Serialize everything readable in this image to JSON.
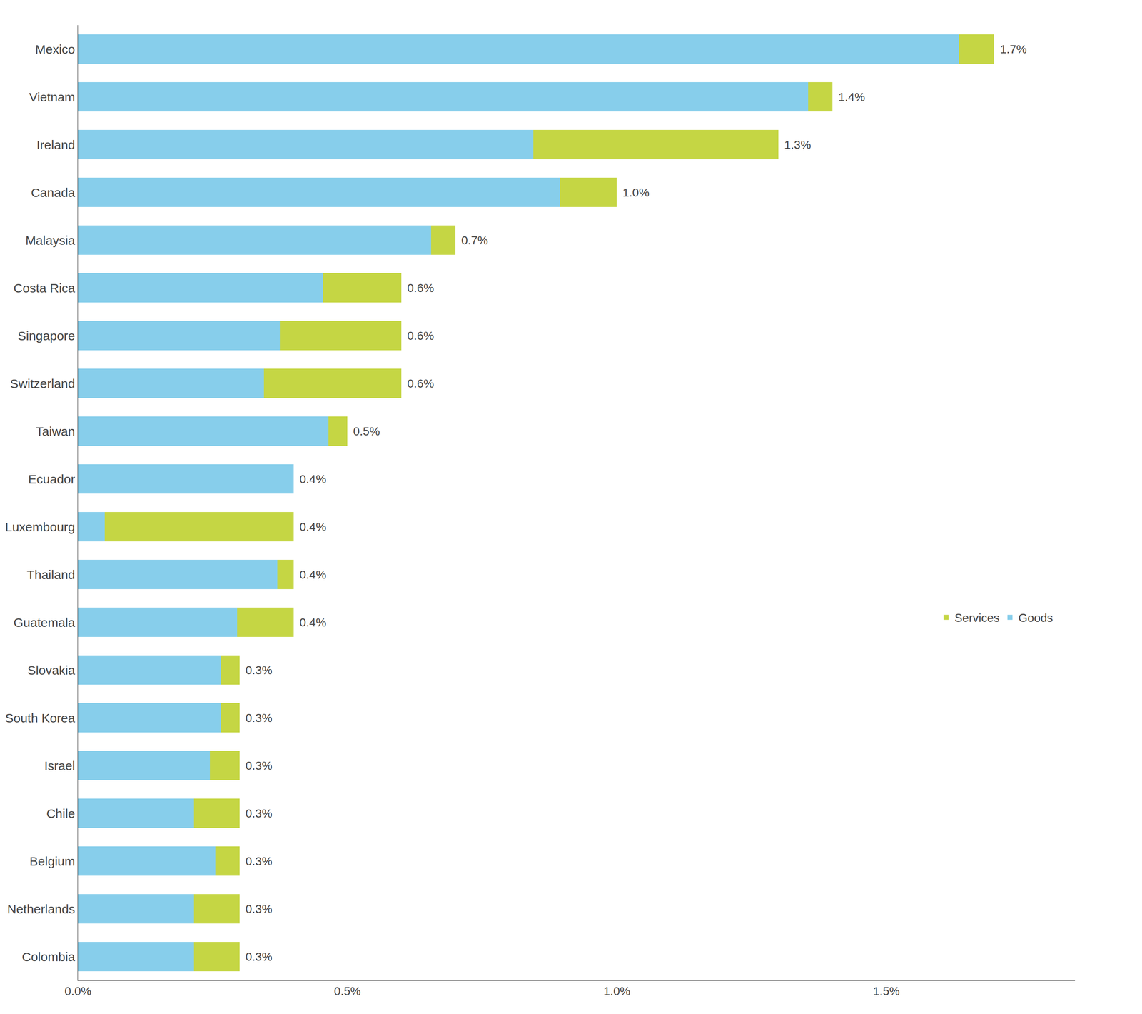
{
  "chart_data": {
    "type": "bar",
    "orientation": "horizontal",
    "stacked": true,
    "categories": [
      "Colombia",
      "Netherlands",
      "Belgium",
      "Chile",
      "Israel",
      "South Korea",
      "Slovakia",
      "Guatemala",
      "Thailand",
      "Luxembourg",
      "Ecuador",
      "Taiwan",
      "Switzerland",
      "Singapore",
      "Costa Rica",
      "Malaysia",
      "Canada",
      "Ireland",
      "Vietnam",
      "Mexico"
    ],
    "series": [
      {
        "name": "Goods",
        "color": "#87CEEB",
        "values": [
          0.215,
          0.215,
          0.255,
          0.215,
          0.245,
          0.265,
          0.265,
          0.295,
          0.37,
          0.05,
          0.4,
          0.465,
          0.345,
          0.375,
          0.455,
          0.655,
          0.895,
          0.845,
          1.355,
          1.635
        ]
      },
      {
        "name": "Services",
        "color": "#C5D644",
        "values": [
          0.085,
          0.085,
          0.045,
          0.085,
          0.055,
          0.035,
          0.035,
          0.105,
          0.03,
          0.35,
          0.0,
          0.035,
          0.255,
          0.225,
          0.145,
          0.045,
          0.105,
          0.455,
          0.045,
          0.065
        ]
      }
    ],
    "totals": [
      0.3,
      0.3,
      0.3,
      0.3,
      0.3,
      0.3,
      0.3,
      0.4,
      0.4,
      0.4,
      0.4,
      0.5,
      0.6,
      0.6,
      0.6,
      0.7,
      1.0,
      1.3,
      1.4,
      1.7
    ],
    "total_labels": [
      "0.3%",
      "0.3%",
      "0.3%",
      "0.3%",
      "0.3%",
      "0.3%",
      "0.3%",
      "0.4%",
      "0.4%",
      "0.4%",
      "0.4%",
      "0.5%",
      "0.6%",
      "0.6%",
      "0.6%",
      "0.7%",
      "1.0%",
      "1.3%",
      "1.4%",
      "1.7%"
    ],
    "xlim": [
      0,
      1.85
    ],
    "xticks": [
      {
        "value": 0.0,
        "label": "0.0%"
      },
      {
        "value": 0.5,
        "label": "0.5%"
      },
      {
        "value": 1.0,
        "label": "1.0%"
      },
      {
        "value": 1.5,
        "label": "1.5%"
      }
    ],
    "grid": false,
    "legend": "right"
  }
}
